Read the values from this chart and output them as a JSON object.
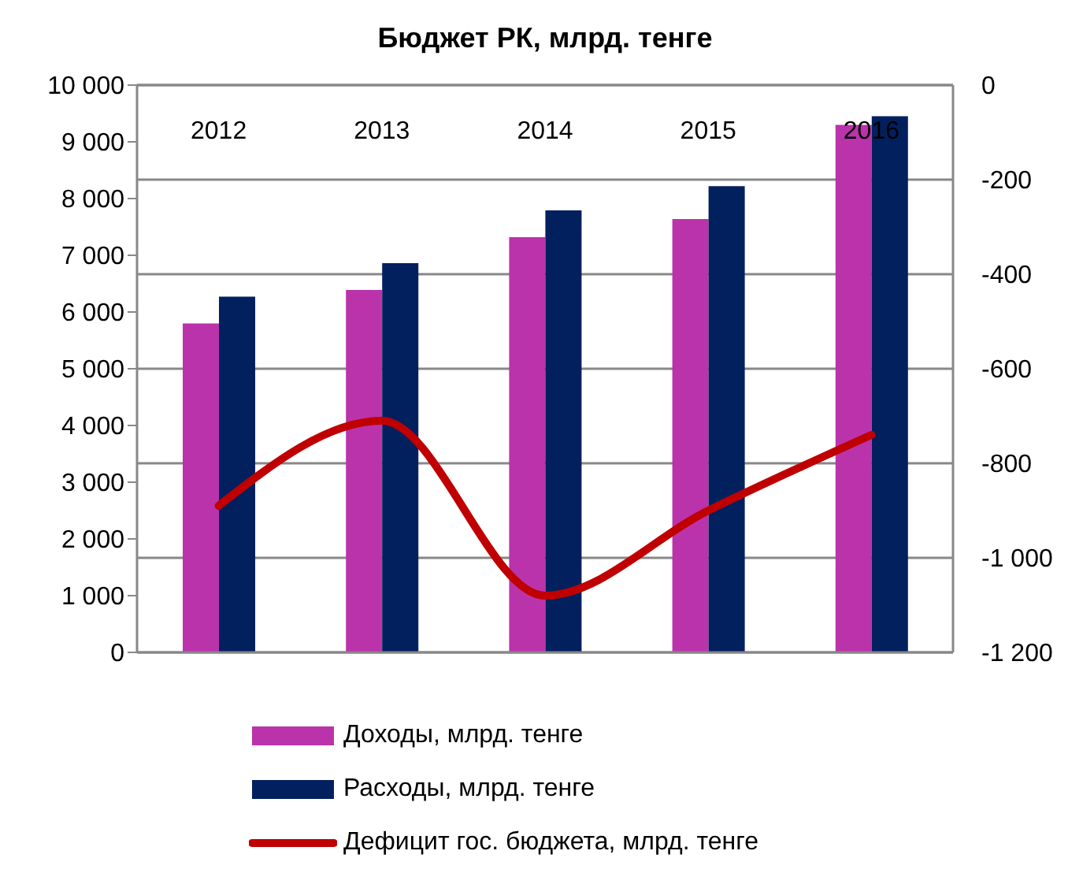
{
  "chart_data": {
    "type": "bar",
    "title": "Бюджет РК, млрд. тенге",
    "categories": [
      "2012",
      "2013",
      "2014",
      "2015",
      "2016"
    ],
    "series": [
      {
        "name": "Доходы, млрд. тенге",
        "color": "#bb33aa",
        "values": [
          5800,
          6390,
          7320,
          7640,
          9300
        ]
      },
      {
        "name": "Расходы, млрд. тенге",
        "color": "#03205e",
        "values": [
          6270,
          6860,
          7790,
          8220,
          9450
        ]
      },
      {
        "name": "Дефицит гос. бюджета, млрд. тенге",
        "type": "line",
        "axis": "y2",
        "color": "#c00000",
        "values": [
          -890,
          -710,
          -1080,
          -900,
          -740
        ]
      }
    ],
    "ylim": [
      0,
      10000
    ],
    "yticks": [
      {
        "value": 0,
        "label": "0"
      },
      {
        "value": 1000,
        "label": "1 000"
      },
      {
        "value": 2000,
        "label": "2 000"
      },
      {
        "value": 3000,
        "label": "3 000"
      },
      {
        "value": 4000,
        "label": "4 000"
      },
      {
        "value": 5000,
        "label": "5 000"
      },
      {
        "value": 6000,
        "label": "6 000"
      },
      {
        "value": 7000,
        "label": "7 000"
      },
      {
        "value": 8000,
        "label": "8 000"
      },
      {
        "value": 9000,
        "label": "9 000"
      },
      {
        "value": 10000,
        "label": "10 000"
      }
    ],
    "y2lim": [
      -1200,
      0
    ],
    "y2ticks": [
      {
        "value": -1200,
        "label": "-1 200"
      },
      {
        "value": -1000,
        "label": "-1 000"
      },
      -800,
      -600,
      -400,
      -200,
      0
    ],
    "grid": "y",
    "legend": "bottom",
    "marker": "none",
    "line_style": "solid"
  }
}
